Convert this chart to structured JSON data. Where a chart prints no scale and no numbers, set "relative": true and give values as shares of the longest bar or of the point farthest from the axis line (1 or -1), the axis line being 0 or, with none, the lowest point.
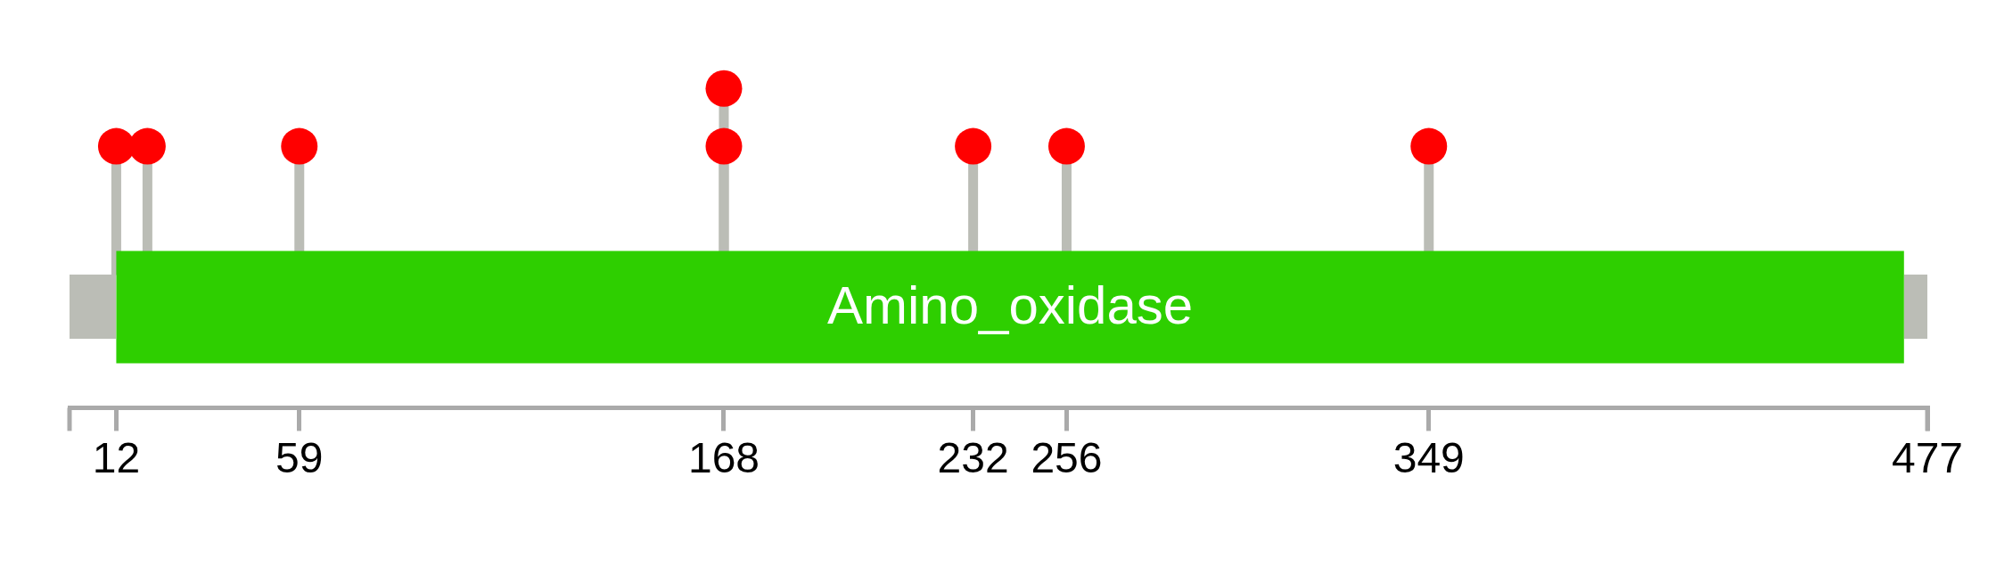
{
  "chart_data": {
    "type": "lollipop",
    "relative": true,
    "x": [
      12,
      20,
      59,
      168,
      168,
      232,
      256,
      349
    ],
    "values": [
      0.69,
      0.69,
      0.69,
      0.69,
      1,
      0.69,
      0.69,
      0.69
    ],
    "color": "#ff0000",
    "marker": "circle",
    "xlim": [
      0,
      477
    ],
    "xticks": [
      12,
      59,
      168,
      232,
      256,
      349,
      477
    ],
    "bands": [
      {
        "axis": "x",
        "from": 12,
        "to": 471,
        "label": "Amino_oxidase",
        "color": "#2ecf00"
      }
    ]
  }
}
